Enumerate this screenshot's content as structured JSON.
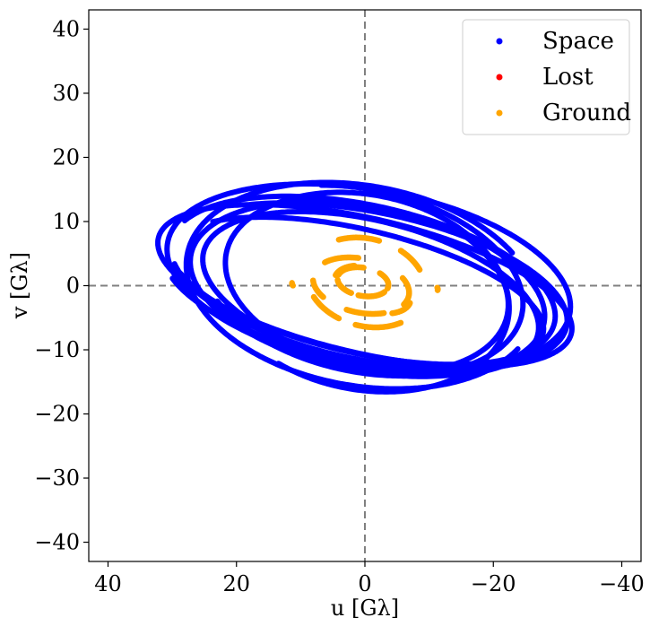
{
  "chart_data": {
    "type": "scatter",
    "title": "",
    "xlabel": "u [Gλ]",
    "ylabel": "v [Gλ]",
    "xlim": [
      43,
      -43
    ],
    "ylim": [
      -43,
      43
    ],
    "xticks": [
      40,
      20,
      0,
      -20,
      -40
    ],
    "yticks": [
      40,
      30,
      20,
      10,
      0,
      -10,
      -20,
      -30,
      -40
    ],
    "xtick_labels": [
      "40",
      "20",
      "0",
      "−20",
      "−40"
    ],
    "ytick_labels": [
      "40",
      "30",
      "20",
      "10",
      "0",
      "−10",
      "−20",
      "−30",
      "−40"
    ],
    "reference_lines": [
      {
        "axis": "x",
        "value": 0,
        "style": "dashed",
        "color": "#808080"
      },
      {
        "axis": "y",
        "value": 0,
        "style": "dashed",
        "color": "#808080"
      }
    ],
    "legend": {
      "placement": "top-right",
      "entries": [
        {
          "label": "Space",
          "color": "#0000ff"
        },
        {
          "label": "Lost",
          "color": "#ff0000"
        },
        {
          "label": "Ground",
          "color": "#ffa500"
        }
      ]
    },
    "series": [
      {
        "name": "Space",
        "color": "#0000ff",
        "marker": "dot",
        "tracks": [
          {
            "a": 33.0,
            "b": 10.5,
            "tilt_deg": 13,
            "cx": 0.0,
            "cy": 0.0,
            "t0": 0.0,
            "t1": 6.283
          },
          {
            "a": 30.5,
            "b": 12.0,
            "tilt_deg": 12,
            "cx": 0.3,
            "cy": 0.6,
            "t0": 0.3,
            "t1": 6.0
          },
          {
            "a": 28.0,
            "b": 12.8,
            "tilt_deg": 11,
            "cx": -0.4,
            "cy": -0.5,
            "t0": 0.0,
            "t1": 6.283
          },
          {
            "a": 25.5,
            "b": 14.2,
            "tilt_deg": 12,
            "cx": 0.5,
            "cy": 0.8,
            "t0": 1.2,
            "t1": 5.7
          },
          {
            "a": 31.8,
            "b": 13.8,
            "tilt_deg": 10,
            "cx": -0.6,
            "cy": 1.2,
            "t0": 0.0,
            "t1": 6.283
          },
          {
            "a": 23.0,
            "b": 15.2,
            "tilt_deg": 11,
            "cx": 0.3,
            "cy": -1.0,
            "t0": 0.5,
            "t1": 5.2
          },
          {
            "a": 26.8,
            "b": 11.3,
            "tilt_deg": 14,
            "cx": -0.9,
            "cy": -1.2,
            "t0": 0.0,
            "t1": 6.283
          },
          {
            "a": 29.6,
            "b": 9.6,
            "tilt_deg": 13,
            "cx": 1.1,
            "cy": -0.8,
            "t0": 0.6,
            "t1": 5.9
          },
          {
            "a": 32.0,
            "b": 11.8,
            "tilt_deg": 11,
            "cx": 0.0,
            "cy": -0.2,
            "t0": 0.9,
            "t1": 5.9
          },
          {
            "a": 22.4,
            "b": 13.2,
            "tilt_deg": 13,
            "cx": -0.3,
            "cy": 0.3,
            "t0": 2.2,
            "t1": 6.8
          },
          {
            "a": 27.5,
            "b": 15.6,
            "tilt_deg": 10,
            "cx": 0.6,
            "cy": 0.0,
            "t0": 3.5,
            "t1": 8.8
          }
        ]
      },
      {
        "name": "Lost",
        "color": "#ff0000",
        "marker": "dot",
        "tracks": []
      },
      {
        "name": "Ground",
        "color": "#ffa500",
        "marker": "dot",
        "tracks": [
          {
            "a": 4.0,
            "b": 2.2,
            "tilt_deg": 10,
            "cx": 0.3,
            "cy": 0.6,
            "t0": 0.2,
            "t1": 1.5
          },
          {
            "a": 4.0,
            "b": 2.2,
            "tilt_deg": 10,
            "cx": 0.3,
            "cy": 0.6,
            "t0": 2.2,
            "t1": 3.3
          },
          {
            "a": 4.0,
            "b": 2.2,
            "tilt_deg": 10,
            "cx": 0.3,
            "cy": 0.6,
            "t0": 3.6,
            "t1": 4.8
          },
          {
            "a": 4.0,
            "b": 2.2,
            "tilt_deg": 10,
            "cx": 0.3,
            "cy": 0.6,
            "t0": 5.1,
            "t1": 6.1
          },
          {
            "a": 7.6,
            "b": 4.2,
            "tilt_deg": 12,
            "cx": 0.6,
            "cy": 0.0,
            "t0": 0.6,
            "t1": 1.4
          },
          {
            "a": 7.6,
            "b": 4.2,
            "tilt_deg": 12,
            "cx": 0.6,
            "cy": 0.0,
            "t0": 2.5,
            "t1": 3.5
          },
          {
            "a": 7.6,
            "b": 4.2,
            "tilt_deg": 12,
            "cx": 0.6,
            "cy": 0.0,
            "t0": 4.1,
            "t1": 4.9
          },
          {
            "a": 7.6,
            "b": 4.2,
            "tilt_deg": 12,
            "cx": 0.6,
            "cy": 0.0,
            "t0": 5.5,
            "t1": 6.1
          },
          {
            "a": 9.4,
            "b": 6.8,
            "tilt_deg": 15,
            "cx": -0.2,
            "cy": 0.5,
            "t0": 0.9,
            "t1": 1.6
          },
          {
            "a": 9.4,
            "b": 6.8,
            "tilt_deg": 15,
            "cx": -0.2,
            "cy": 0.5,
            "t0": 2.0,
            "t1": 2.5
          },
          {
            "a": 9.4,
            "b": 6.8,
            "tilt_deg": 15,
            "cx": -0.2,
            "cy": 0.5,
            "t0": 3.9,
            "t1": 4.7
          },
          {
            "a": 9.4,
            "b": 6.8,
            "tilt_deg": 15,
            "cx": -0.2,
            "cy": 0.5,
            "t0": 5.0,
            "t1": 5.6
          },
          {
            "a": 6.2,
            "b": 3.4,
            "tilt_deg": 18,
            "cx": -1.2,
            "cy": -0.6,
            "t0": 0.1,
            "t1": 0.9
          },
          {
            "a": 6.2,
            "b": 3.4,
            "tilt_deg": 18,
            "cx": -1.2,
            "cy": -0.6,
            "t0": 3.2,
            "t1": 4.0
          },
          {
            "a": 11.4,
            "b": 2.0,
            "tilt_deg": 5,
            "cx": 0.0,
            "cy": 0.4,
            "t0": 3.0,
            "t1": 3.2
          },
          {
            "a": 11.4,
            "b": 2.0,
            "tilt_deg": 5,
            "cx": 0.0,
            "cy": -0.6,
            "t0": 6.1,
            "t1": 6.3
          }
        ]
      }
    ]
  }
}
